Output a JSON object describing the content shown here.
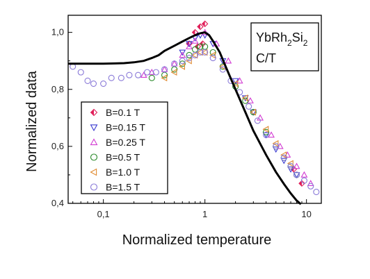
{
  "chart_data": {
    "type": "scatter",
    "xlabel": "Normalized temperature",
    "ylabel": "Normalized data",
    "xscale": "log",
    "xlim": [
      0.045,
      14
    ],
    "ylim": [
      0.4,
      1.06
    ],
    "x_ticks": [
      0.1,
      1,
      10
    ],
    "x_tick_labels": [
      "0,1",
      "1",
      "10"
    ],
    "y_ticks": [
      0.4,
      0.6,
      0.8,
      1.0
    ],
    "y_tick_labels": [
      "0,4",
      "0,6",
      "0,8",
      "1,0"
    ],
    "inset_label": {
      "base": "YbRh",
      "sub1": "2",
      "mid": "Si",
      "sub2": "2",
      "line2": "C/T"
    },
    "legend_placement": "lower-left",
    "grid": false,
    "series": [
      {
        "name": "B=0.1 T",
        "marker": "diamond",
        "color": "#e0205a",
        "x": [
          0.7,
          0.8,
          0.85,
          0.9,
          0.95,
          1.0,
          7.5,
          9.0
        ],
        "y": [
          0.96,
          1.0,
          0.95,
          1.02,
          0.96,
          1.03,
          0.52,
          0.47
        ]
      },
      {
        "name": "B=0.15 T",
        "marker": "triangle-down",
        "color": "#3a3ad0",
        "x": [
          0.6,
          0.7,
          0.8,
          0.9,
          1.0,
          1.2,
          1.5,
          2.0,
          2.5,
          3.0,
          4.0,
          5.0,
          6.0,
          7.0,
          8.0
        ],
        "y": [
          0.93,
          0.96,
          0.98,
          0.99,
          0.99,
          0.96,
          0.9,
          0.83,
          0.77,
          0.72,
          0.64,
          0.59,
          0.55,
          0.52,
          0.5
        ]
      },
      {
        "name": "B=0.25 T",
        "marker": "triangle-up",
        "color": "#d23cd2",
        "x": [
          0.25,
          0.3,
          0.4,
          0.5,
          0.6,
          0.7,
          0.8,
          1.0,
          1.3,
          1.7,
          2.2,
          2.8,
          3.5,
          4.5,
          5.5,
          6.5,
          8.0,
          9.5,
          11.0
        ],
        "y": [
          0.85,
          0.86,
          0.87,
          0.89,
          0.92,
          0.95,
          0.97,
          1.0,
          0.96,
          0.9,
          0.83,
          0.76,
          0.7,
          0.64,
          0.6,
          0.57,
          0.53,
          0.5,
          0.47
        ]
      },
      {
        "name": "B=0.5 T",
        "marker": "circle",
        "color": "#2a8a2a",
        "x": [
          0.3,
          0.4,
          0.5,
          0.6,
          0.7,
          0.8,
          0.9,
          1.0,
          1.2,
          1.5,
          2.0,
          2.5,
          3.0,
          4.0,
          5.0,
          6.0,
          7.0,
          8.0
        ],
        "y": [
          0.84,
          0.85,
          0.87,
          0.89,
          0.92,
          0.94,
          0.95,
          0.95,
          0.93,
          0.88,
          0.81,
          0.76,
          0.72,
          0.65,
          0.6,
          0.56,
          0.53,
          0.5
        ]
      },
      {
        "name": "B=1.0 T",
        "marker": "triangle-left",
        "color": "#e08a30",
        "x": [
          0.4,
          0.5,
          0.6,
          0.7,
          0.8,
          0.9,
          1.0,
          1.2,
          1.5,
          2.0,
          2.5,
          3.0,
          4.0,
          5.0,
          6.0,
          7.0
        ],
        "y": [
          0.84,
          0.86,
          0.88,
          0.9,
          0.92,
          0.93,
          0.93,
          0.92,
          0.88,
          0.82,
          0.77,
          0.72,
          0.66,
          0.61,
          0.57,
          0.54
        ]
      },
      {
        "name": "B=1.5 T",
        "marker": "circle",
        "color": "#8a7ad8",
        "x": [
          0.05,
          0.06,
          0.07,
          0.08,
          0.1,
          0.12,
          0.15,
          0.18,
          0.22,
          0.27,
          0.33,
          0.4,
          0.5,
          0.6,
          0.7,
          0.8,
          0.9,
          1.0,
          1.2,
          1.5,
          1.8,
          2.2,
          2.7,
          3.3,
          4.0,
          5.0,
          6.0,
          7.0,
          8.0,
          9.5,
          11.0,
          12.5
        ],
        "y": [
          0.88,
          0.86,
          0.83,
          0.82,
          0.82,
          0.84,
          0.84,
          0.85,
          0.85,
          0.86,
          0.86,
          0.87,
          0.89,
          0.9,
          0.91,
          0.92,
          0.93,
          0.93,
          0.91,
          0.87,
          0.83,
          0.79,
          0.74,
          0.69,
          0.64,
          0.6,
          0.56,
          0.53,
          0.5,
          0.48,
          0.46,
          0.44
        ]
      }
    ],
    "theory_curve": {
      "x": [
        0.045,
        0.06,
        0.08,
        0.1,
        0.13,
        0.16,
        0.2,
        0.25,
        0.3,
        0.35,
        0.4,
        0.5,
        0.6,
        0.7,
        0.8,
        0.9,
        1.0,
        1.1,
        1.2,
        1.4,
        1.6,
        2.0,
        2.5,
        3.0,
        4.0,
        5.0,
        6.0,
        7.0,
        8.0,
        8.8
      ],
      "y": [
        0.89,
        0.89,
        0.89,
        0.89,
        0.891,
        0.892,
        0.895,
        0.9,
        0.91,
        0.92,
        0.935,
        0.953,
        0.968,
        0.98,
        0.99,
        0.997,
        1.0,
        0.99,
        0.97,
        0.93,
        0.88,
        0.8,
        0.72,
        0.655,
        0.57,
        0.51,
        0.468,
        0.435,
        0.41,
        0.397
      ]
    }
  }
}
